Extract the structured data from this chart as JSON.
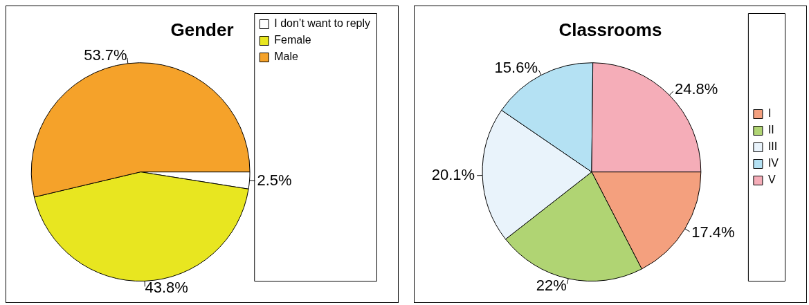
{
  "chart_data": [
    {
      "type": "pie",
      "title": "Gender",
      "categories": [
        "I don’t want to reply",
        "Female",
        "Male"
      ],
      "values": [
        2.5,
        43.8,
        53.7
      ],
      "colors": [
        "#ffffff",
        "#e8e620",
        "#f5a22a"
      ],
      "value_labels": [
        "2.5%",
        "43.8%",
        "53.7%"
      ],
      "legend": "top right"
    },
    {
      "type": "pie",
      "title": "Classrooms",
      "categories": [
        "I",
        "II",
        "III",
        "IV",
        "V"
      ],
      "values": [
        17.4,
        22,
        20.1,
        15.6,
        24.8
      ],
      "colors": [
        "#f4a07e",
        "#b0d473",
        "#e9f3fb",
        "#b4e1f3",
        "#f5adb8"
      ],
      "value_labels": [
        "17.4%",
        "22%",
        "20.1%",
        "15.6%",
        "24.8%"
      ],
      "legend": "right"
    }
  ]
}
